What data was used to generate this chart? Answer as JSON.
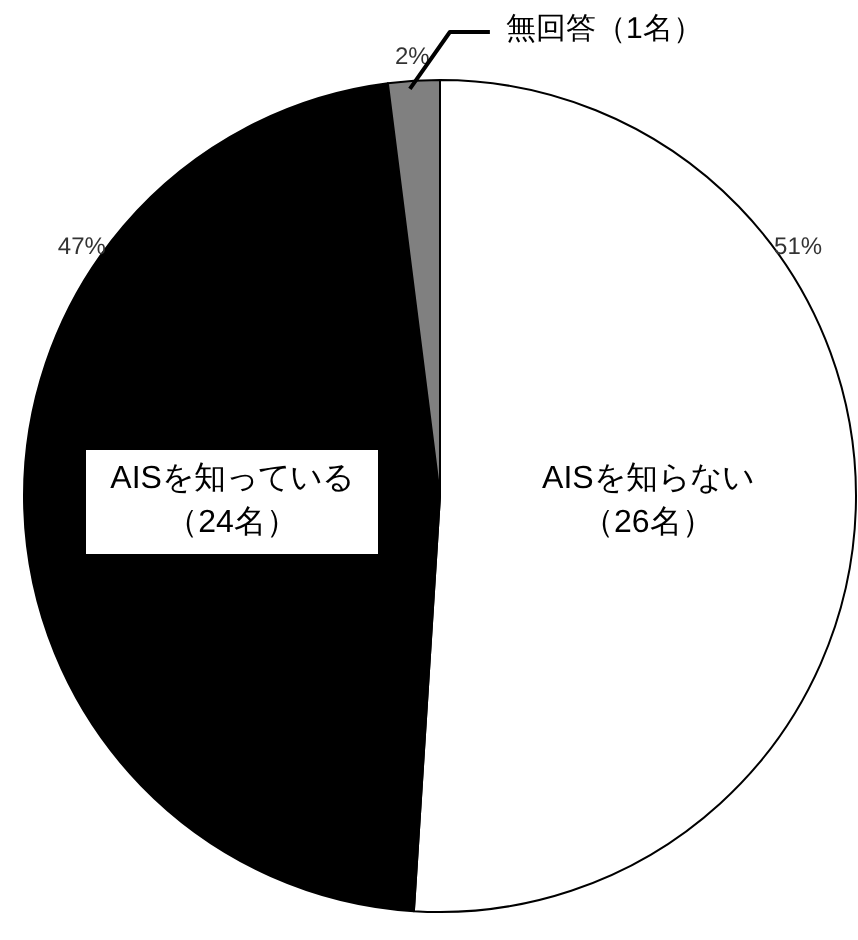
{
  "chart_data": {
    "type": "pie",
    "categories": [
      "AISを知らない（26名）",
      "AISを知っている（24名）",
      "無回答（1名）"
    ],
    "values": [
      51,
      47,
      2
    ],
    "colors": [
      "#ffffff",
      "#000000",
      "#808080"
    ],
    "value_labels": [
      "51%",
      "47%",
      "2%"
    ]
  }
}
